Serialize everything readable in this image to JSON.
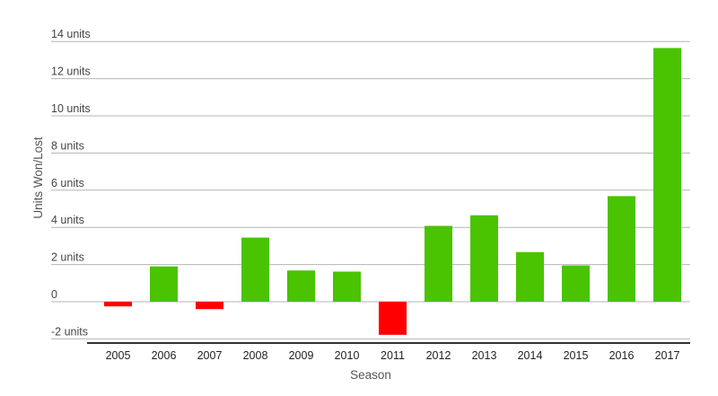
{
  "chart_data": {
    "type": "bar",
    "title": "",
    "xlabel": "Season",
    "ylabel": "Units Won/Lost",
    "categories": [
      "2005",
      "2006",
      "2007",
      "2008",
      "2009",
      "2010",
      "2011",
      "2012",
      "2013",
      "2014",
      "2015",
      "2016",
      "2017"
    ],
    "values": [
      -0.25,
      1.9,
      -0.4,
      3.45,
      1.68,
      1.62,
      -1.78,
      4.08,
      4.65,
      2.67,
      1.95,
      5.68,
      13.65
    ],
    "ylim": [
      -2,
      14
    ],
    "yticks": [
      14,
      12,
      10,
      8,
      6,
      4,
      2,
      0,
      -2
    ],
    "ytick_labels": [
      "14 units",
      "12 units",
      "10 units",
      "8 units",
      "6 units",
      "4 units",
      "2 units",
      "0",
      "-2 units"
    ],
    "grid": true,
    "legend": "none",
    "colors": {
      "positive": "#4ac300",
      "negative": "#ff0000",
      "grid": "#b5b5b5",
      "baseline": "#333333"
    }
  }
}
